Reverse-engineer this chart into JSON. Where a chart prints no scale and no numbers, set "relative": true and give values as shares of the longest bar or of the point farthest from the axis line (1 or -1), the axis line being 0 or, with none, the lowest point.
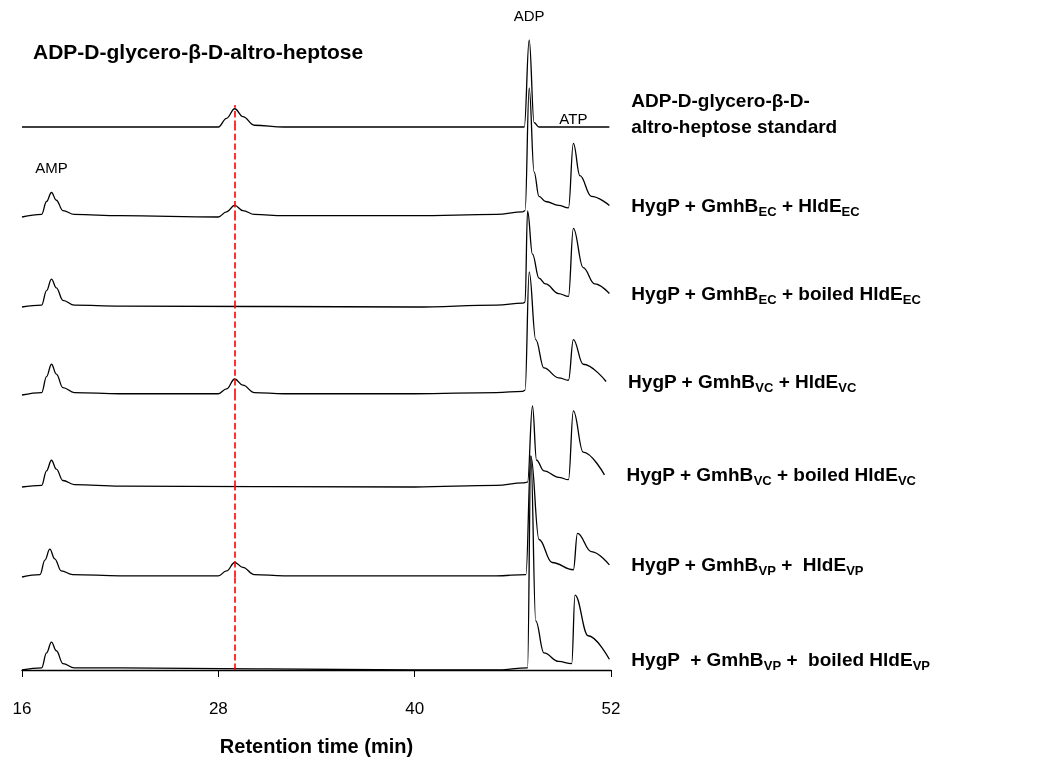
{
  "chart_data": [
    {
      "type": "line",
      "relative": true,
      "title": "ADP-D-glycero-β-D-altro-heptose",
      "xlim": [
        16,
        52
      ],
      "xticks": [
        16,
        28,
        40,
        52
      ],
      "tick_labels": false,
      "marker": "none",
      "x": [
        16,
        28.0,
        28.5,
        29.0,
        29.5,
        30.2,
        32,
        46.7,
        47.0,
        47.3,
        47.6,
        51.9
      ],
      "series": [
        {
          "name": "ADP-D-glycero-β-D-altro-heptose standard",
          "color": "#000000",
          "values": [
            0,
            0,
            0.1,
            0.21,
            0.12,
            0.02,
            0,
            0,
            1,
            0.05,
            0,
            0
          ]
        }
      ],
      "ref_lines": [
        {
          "axis": "x",
          "value": 29.0,
          "color": "#ff0000",
          "line_style": "dashed"
        }
      ],
      "annotations": [
        {
          "text": "ADP",
          "x": 47.0,
          "y": 1
        }
      ]
    },
    {
      "type": "line",
      "relative": true,
      "xlim": [
        16,
        52
      ],
      "xticks": [
        16,
        28,
        40,
        52
      ],
      "tick_labels": false,
      "marker": "none",
      "x": [
        16,
        17.2,
        17.5,
        17.8,
        18.1,
        18.5,
        19.2,
        22,
        28.0,
        28.5,
        29.0,
        29.5,
        30.2,
        32,
        40,
        45,
        46.6,
        46.75,
        47.0,
        47.3,
        47.6,
        48.0,
        48.8,
        49.4,
        49.7,
        50.1,
        50.8,
        51.9
      ],
      "series": [
        {
          "name": "HygP + GmhB$_{EC}$ + HldE$_{EC}$",
          "color": "#000000",
          "values": [
            0,
            0.02,
            0.12,
            0.19,
            0.13,
            0.05,
            0.02,
            0.01,
            0,
            0.04,
            0.09,
            0.05,
            0.02,
            0.01,
            0.01,
            0.02,
            0.04,
            0.05,
            1,
            0.35,
            0.16,
            0.12,
            0.09,
            0.07,
            0.57,
            0.32,
            0.16,
            0.09
          ]
        }
      ],
      "ref_lines": [
        {
          "axis": "x",
          "value": 29.0,
          "color": "#ff0000",
          "line_style": "dashed"
        }
      ],
      "annotations": [
        {
          "text": "AMP",
          "x": 17.8,
          "y": 0.19
        },
        {
          "text": "ATP",
          "x": 49.7,
          "y": 0.57
        }
      ]
    },
    {
      "type": "line",
      "relative": true,
      "xlim": [
        16,
        52
      ],
      "xticks": [
        16,
        28,
        40,
        52
      ],
      "tick_labels": false,
      "marker": "none",
      "x": [
        16,
        17.2,
        17.5,
        17.8,
        18.1,
        18.5,
        19.2,
        22,
        40,
        45,
        46.6,
        46.75,
        46.9,
        47.2,
        47.6,
        48.0,
        48.8,
        49.4,
        49.7,
        50.3,
        51.0,
        51.9
      ],
      "series": [
        {
          "name": "HygP + GmhB$_{EC}$ + boiled HldE$_{EC}$",
          "color": "#000000",
          "values": [
            0,
            0.02,
            0.17,
            0.29,
            0.2,
            0.07,
            0.02,
            0.01,
            0,
            0.02,
            0.04,
            0.05,
            1,
            0.55,
            0.3,
            0.24,
            0.14,
            0.11,
            0.82,
            0.41,
            0.24,
            0.14
          ]
        }
      ],
      "ref_lines": [
        {
          "axis": "x",
          "value": 29.0,
          "color": "#ff0000",
          "line_style": "dashed"
        }
      ]
    },
    {
      "type": "line",
      "relative": true,
      "xlim": [
        16,
        52
      ],
      "xticks": [
        16,
        28,
        40,
        52
      ],
      "tick_labels": false,
      "marker": "none",
      "x": [
        16,
        17.2,
        17.5,
        17.8,
        18.1,
        18.5,
        19.2,
        22,
        28.0,
        28.5,
        29.0,
        29.5,
        30.2,
        32,
        40,
        45,
        46.6,
        46.75,
        47.0,
        47.4,
        47.9,
        48.8,
        49.4,
        49.7,
        50.3,
        51.7
      ],
      "series": [
        {
          "name": "HygP + GmhB$_{VC}$ + HldE$_{VC}$",
          "color": "#000000",
          "values": [
            0,
            0.02,
            0.15,
            0.25,
            0.17,
            0.06,
            0.02,
            0.01,
            0.01,
            0.05,
            0.13,
            0.08,
            0.02,
            0.01,
            0.01,
            0.02,
            0.03,
            0.04,
            1,
            0.45,
            0.22,
            0.14,
            0.12,
            0.45,
            0.25,
            0.11
          ]
        }
      ],
      "ref_lines": [
        {
          "axis": "x",
          "value": 29.0,
          "color": "#ff0000",
          "line_style": "dashed"
        }
      ]
    },
    {
      "type": "line",
      "relative": true,
      "xlim": [
        16,
        52
      ],
      "xticks": [
        16,
        28,
        40,
        52
      ],
      "tick_labels": false,
      "marker": "none",
      "x": [
        16,
        17.2,
        17.5,
        17.8,
        18.1,
        18.5,
        19.2,
        22,
        40,
        45,
        46.6,
        46.9,
        47.2,
        47.45,
        47.9,
        48.8,
        49.4,
        49.7,
        50.3,
        51.6
      ],
      "series": [
        {
          "name": "HygP + GmhB$_{VC}$ + boiled HldE$_{VC}$",
          "color": "#000000",
          "values": [
            0,
            0.02,
            0.2,
            0.33,
            0.22,
            0.08,
            0.03,
            0.01,
            0,
            0.02,
            0.05,
            0.06,
            1,
            0.33,
            0.2,
            0.12,
            0.09,
            0.94,
            0.43,
            0.15
          ]
        }
      ],
      "ref_lines": [
        {
          "axis": "x",
          "value": 29.0,
          "color": "#ff0000",
          "line_style": "dashed"
        }
      ]
    },
    {
      "type": "line",
      "relative": true,
      "xlim": [
        16,
        52
      ],
      "xticks": [
        16,
        28,
        40,
        52
      ],
      "tick_labels": false,
      "marker": "none",
      "x": [
        16,
        17.1,
        17.4,
        17.7,
        18.0,
        18.4,
        19.1,
        22,
        28.0,
        28.5,
        29.0,
        29.5,
        30.2,
        32,
        40,
        45,
        46.8,
        47.1,
        47.6,
        48.4,
        49.7,
        49.95,
        50.8,
        51.9
      ],
      "series": [
        {
          "name": "HygP + GmhB$_{VP}$ +  HldE$_{VP}$",
          "color": "#000000",
          "values": [
            0,
            0.02,
            0.14,
            0.23,
            0.15,
            0.05,
            0.02,
            0.01,
            0.01,
            0.05,
            0.12,
            0.08,
            0.02,
            0.01,
            0.01,
            0.01,
            0.02,
            1,
            0.31,
            0.12,
            0.06,
            0.36,
            0.21,
            0.1
          ]
        }
      ],
      "ref_lines": [
        {
          "axis": "x",
          "value": 29.0,
          "color": "#ff0000",
          "line_style": "dashed"
        }
      ]
    },
    {
      "type": "line",
      "relative": true,
      "xlabel": "Retention time (min)",
      "xlim": [
        16,
        52
      ],
      "xticks": [
        16,
        28,
        40,
        52
      ],
      "tick_labels": "x",
      "marker": "none",
      "x": [
        16,
        17.2,
        17.5,
        17.8,
        18.1,
        18.5,
        19.2,
        22,
        40,
        45,
        46.9,
        47.1,
        47.4,
        47.9,
        48.8,
        49.6,
        49.8,
        50.6,
        51.9
      ],
      "series": [
        {
          "name": "HygP  + GmhB$_{VP}$ +  boiled HldE$_{VP}$",
          "color": "#000000",
          "values": [
            0,
            0.01,
            0.08,
            0.13,
            0.09,
            0.03,
            0.01,
            0.01,
            0,
            0,
            0.01,
            1,
            0.23,
            0.08,
            0.04,
            0.03,
            0.35,
            0.16,
            0.05
          ]
        }
      ],
      "ref_lines": [
        {
          "axis": "x",
          "value": 29.0,
          "color": "#ff0000",
          "line_style": "dashed"
        }
      ]
    }
  ]
}
